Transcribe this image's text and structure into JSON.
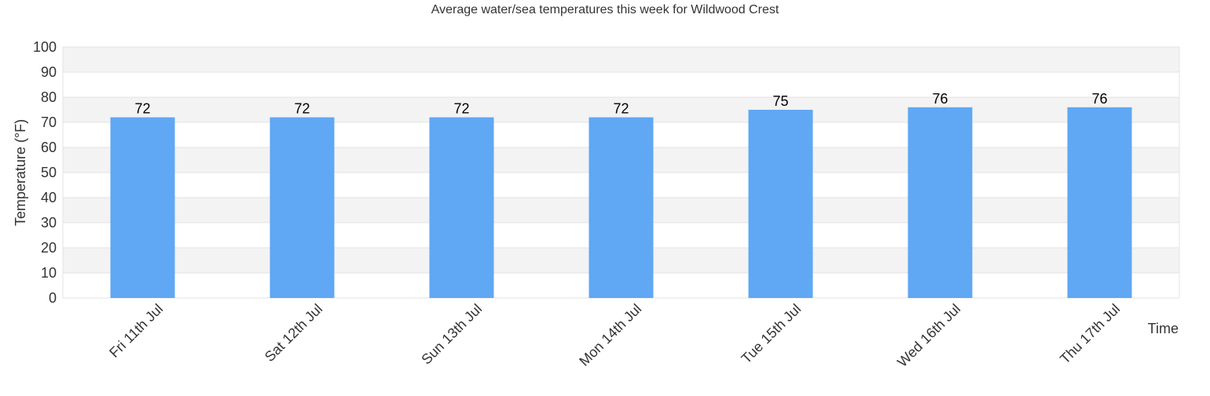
{
  "chart_data": {
    "type": "bar",
    "title": "Average water/sea temperatures this week for Wildwood Crest",
    "xlabel": "Time",
    "ylabel": "Temperature (°F)",
    "ylim": [
      0,
      100
    ],
    "yticks": [
      0,
      10,
      20,
      30,
      40,
      50,
      60,
      70,
      80,
      90,
      100
    ],
    "categories": [
      "Fri 11th Jul",
      "Sat 12th Jul",
      "Sun 13th Jul",
      "Mon 14th Jul",
      "Tue 15th Jul",
      "Wed 16th Jul",
      "Thu 17th Jul"
    ],
    "values": [
      72,
      72,
      72,
      72,
      75,
      76,
      76
    ],
    "data_labels": true,
    "grid": "horizontal alternating bands",
    "legend": "none",
    "colors": {
      "bar": "#60a7f4",
      "band": "#f3f3f3",
      "grid": "#e3e3e3",
      "text": "#333333",
      "label": "#000000"
    }
  }
}
